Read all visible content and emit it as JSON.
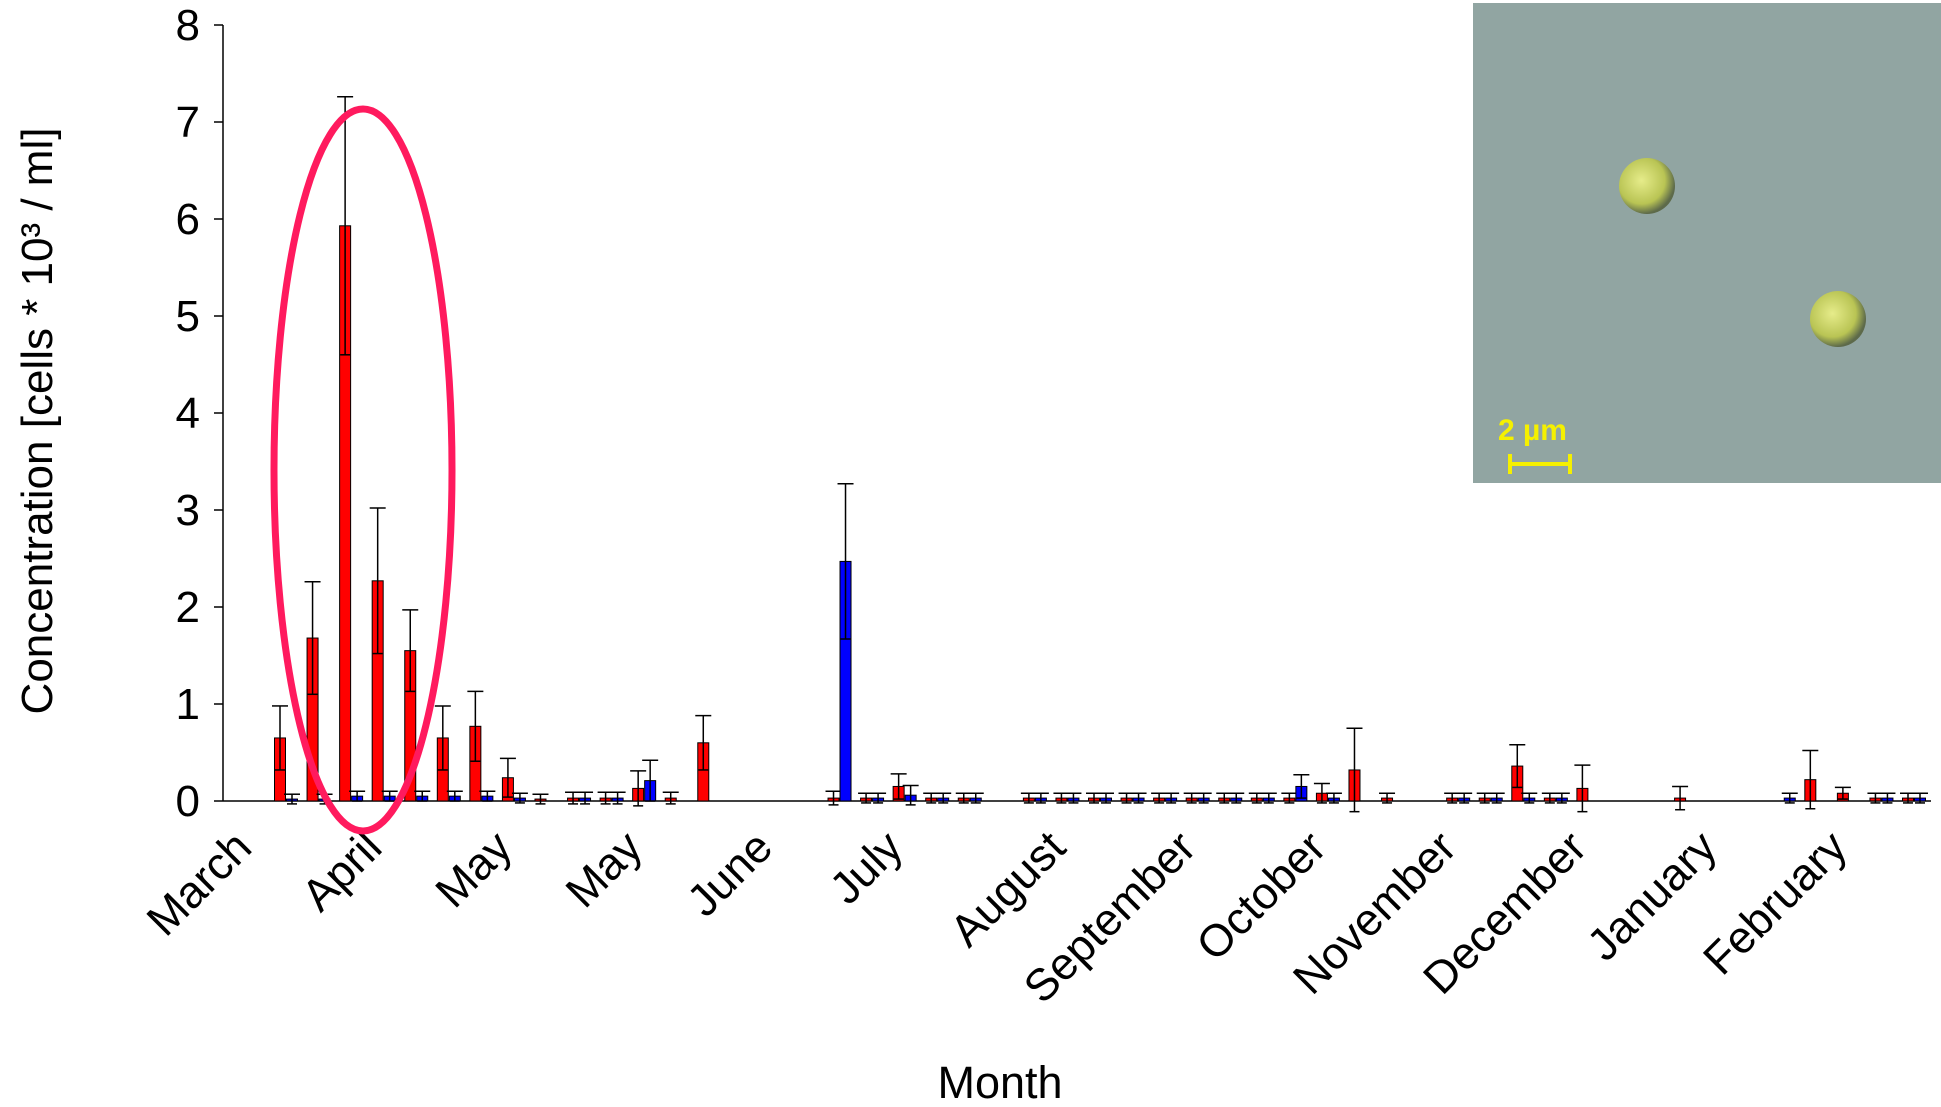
{
  "chart_data": {
    "type": "bar",
    "y_label": "Concentration [cells * 10³ / ml]",
    "x_label": "Month",
    "inset_scale_label": "2 µm",
    "categories": [
      "March",
      null,
      null,
      null,
      "April",
      null,
      null,
      null,
      "May",
      null,
      null,
      null,
      "May",
      null,
      null,
      null,
      "June",
      null,
      null,
      null,
      "July",
      null,
      null,
      null,
      null,
      "August",
      null,
      null,
      null,
      "September",
      null,
      null,
      null,
      "October",
      null,
      null,
      null,
      "November",
      null,
      null,
      null,
      "December",
      null,
      null,
      null,
      "January",
      null,
      null,
      null,
      "February",
      null,
      null
    ],
    "series": [
      {
        "color": "#ff0000",
        "values": [
          0.65,
          1.68,
          5.93,
          2.27,
          1.55,
          0.65,
          0.77,
          0.24,
          0.02,
          0.03,
          0.03,
          0.13,
          0.03,
          0.6,
          null,
          null,
          null,
          0.03,
          0.03,
          0.15,
          0.03,
          0.03,
          null,
          0.03,
          0.03,
          0.03,
          0.03,
          0.03,
          0.03,
          0.03,
          0.03,
          0.03,
          0.08,
          0.32,
          0.03,
          null,
          0.03,
          0.03,
          0.36,
          0.03,
          0.13,
          null,
          null,
          0.03,
          null,
          null,
          null,
          0.22,
          0.08,
          0.03,
          0.03,
          null
        ],
        "errors": [
          0.33,
          0.58,
          1.33,
          0.75,
          0.42,
          0.33,
          0.36,
          0.2,
          0.05,
          0.06,
          0.06,
          0.18,
          0.06,
          0.28,
          null,
          null,
          null,
          0.07,
          0.05,
          0.13,
          0.05,
          0.05,
          null,
          0.05,
          0.05,
          0.05,
          0.05,
          0.05,
          0.05,
          0.05,
          0.05,
          0.05,
          0.1,
          0.43,
          0.05,
          null,
          0.05,
          0.05,
          0.22,
          0.05,
          0.24,
          null,
          null,
          0.12,
          null,
          null,
          null,
          0.3,
          0.06,
          0.05,
          0.05,
          null
        ]
      },
      {
        "color": "#0000ff",
        "values": [
          0.02,
          0.02,
          0.05,
          0.05,
          0.05,
          0.05,
          0.05,
          0.03,
          null,
          0.03,
          0.03,
          0.21,
          null,
          null,
          null,
          null,
          null,
          2.47,
          0.03,
          0.06,
          0.03,
          0.03,
          null,
          0.03,
          0.03,
          0.03,
          0.03,
          0.03,
          0.03,
          0.03,
          0.03,
          0.15,
          0.03,
          null,
          null,
          null,
          0.03,
          0.03,
          0.03,
          0.03,
          null,
          null,
          null,
          null,
          null,
          null,
          0.03,
          null,
          null,
          0.03,
          0.03,
          null
        ],
        "errors": [
          0.05,
          0.05,
          0.05,
          0.05,
          0.05,
          0.05,
          0.05,
          0.05,
          null,
          0.06,
          0.06,
          0.21,
          null,
          null,
          null,
          null,
          null,
          0.8,
          0.05,
          0.1,
          0.05,
          0.05,
          null,
          0.05,
          0.05,
          0.05,
          0.05,
          0.05,
          0.05,
          0.05,
          0.05,
          0.12,
          0.05,
          null,
          null,
          null,
          0.05,
          0.05,
          0.05,
          0.05,
          null,
          null,
          null,
          null,
          null,
          null,
          0.05,
          null,
          null,
          0.05,
          0.05,
          null
        ]
      }
    ],
    "ylim": [
      0,
      8
    ],
    "yticks": [
      0,
      1,
      2,
      3,
      4,
      5,
      6,
      7,
      8
    ]
  }
}
